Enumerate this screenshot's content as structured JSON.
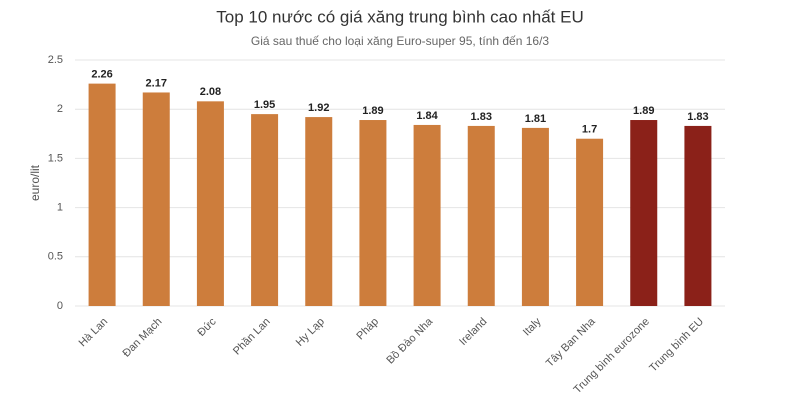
{
  "chart_data": {
    "type": "bar",
    "title": "Top 10 nước có giá xăng trung bình cao nhất EU",
    "subtitle": "Giá sau thuế cho loại xăng Euro-super 95, tính đến 16/3",
    "y_label": "euro/lit",
    "categories": [
      "Hà Lan",
      "Đan Mạch",
      "Đức",
      "Phần Lan",
      "Hy Lạp",
      "Pháp",
      "Bồ Đào Nha",
      "Ireland",
      "Italy",
      "Tây Ban Nha",
      "Trung bình eurozone",
      "Trung bình EU"
    ],
    "values": [
      2.26,
      2.17,
      2.08,
      1.95,
      1.92,
      1.89,
      1.84,
      1.83,
      1.81,
      1.7,
      1.89,
      1.83
    ],
    "colors": [
      "#cd7d3c",
      "#cd7d3c",
      "#cd7d3c",
      "#cd7d3c",
      "#cd7d3c",
      "#cd7d3c",
      "#cd7d3c",
      "#cd7d3c",
      "#cd7d3c",
      "#cd7d3c",
      "#8b2119",
      "#8b2119"
    ],
    "ylim": [
      0,
      2.5
    ],
    "yticks": [
      0,
      0.5,
      1,
      1.5,
      2,
      2.5
    ],
    "grid": true
  }
}
